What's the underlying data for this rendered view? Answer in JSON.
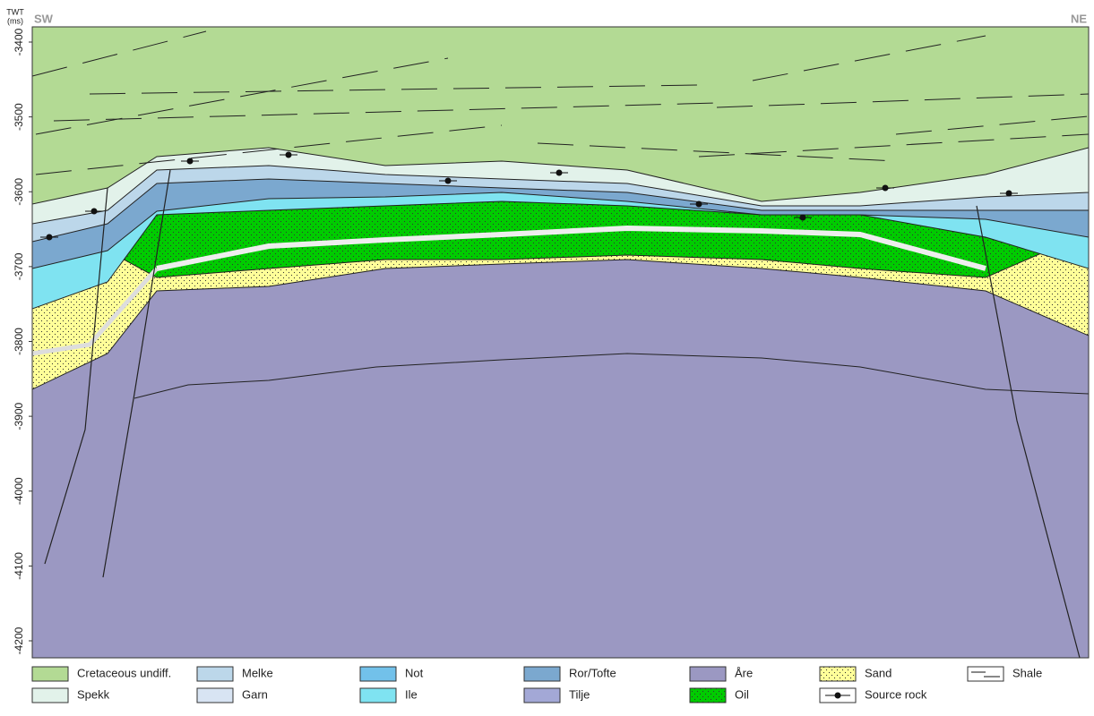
{
  "header": {
    "left": "SW",
    "right": "NE"
  },
  "axis": {
    "label": [
      "TWT",
      "(ms)"
    ],
    "ticks": [
      -3400,
      -3500,
      -3600,
      -3700,
      -3800,
      -3900,
      -4000,
      -4100,
      -4200
    ]
  },
  "legend": [
    {
      "label": "Cretaceous undiff.",
      "color": "#b3da94"
    },
    {
      "label": "Spekk",
      "color": "#e2f2ea"
    },
    {
      "label": "Melke",
      "color": "#bcd7ea"
    },
    {
      "label": "Garn",
      "color": "#d8e4f3"
    },
    {
      "label": "Not",
      "color": "#72c1ea"
    },
    {
      "label": "Ile",
      "color": "#7fe3f1"
    },
    {
      "label": "Ror/Tofte",
      "color": "#7ba8cf"
    },
    {
      "label": "Tilje",
      "color": "#a3a8d6"
    },
    {
      "label": "Åre",
      "color": "#9b98c2"
    },
    {
      "label": "Oil",
      "color": "#00cc00",
      "pattern": "dots"
    },
    {
      "label": "Sand",
      "color": "#ffff99",
      "pattern": "dots"
    },
    {
      "label": "Source rock",
      "symbol": "dot-line"
    },
    {
      "label": "Shale",
      "symbol": "dash"
    }
  ]
}
